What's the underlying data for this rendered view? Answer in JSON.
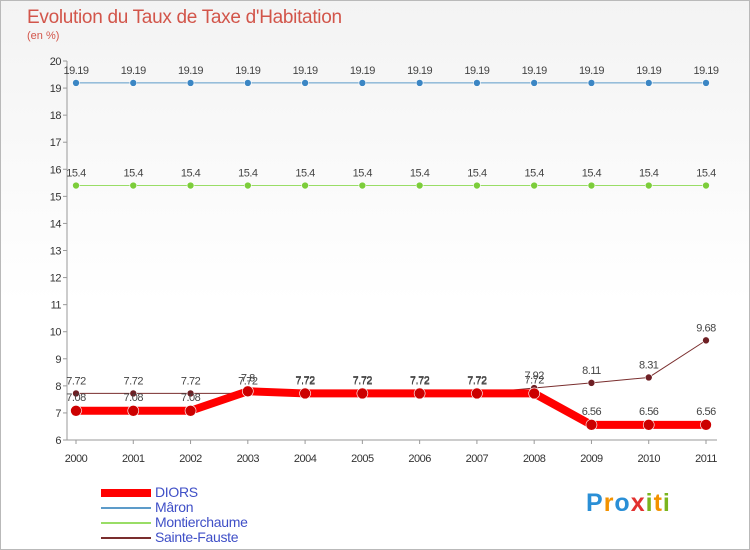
{
  "chart_data": {
    "type": "line",
    "title": "Evolution du Taux de Taxe d'Habitation",
    "ylabel": "(en %)",
    "xlabel": "",
    "ylim": [
      6,
      20
    ],
    "yticks": [
      "6",
      "7",
      "8",
      "9",
      "10",
      "11",
      "12",
      "13",
      "14",
      "15",
      "16",
      "17",
      "18",
      "19",
      "20"
    ],
    "categories": [
      "2000",
      "2001",
      "2002",
      "2003",
      "2004",
      "2005",
      "2006",
      "2007",
      "2008",
      "2009",
      "2010",
      "2011"
    ],
    "grid": false,
    "legend_position": "bottom-left",
    "series": [
      {
        "name": "DIORS",
        "color": "#ff0000",
        "values": [
          7.08,
          7.08,
          7.08,
          7.8,
          7.72,
          7.72,
          7.72,
          7.72,
          7.72,
          6.56,
          6.56,
          6.56
        ],
        "labels": [
          "7.08",
          "7.08",
          "7.08",
          "7.8",
          "7.72",
          "7.72",
          "7.72",
          "7.72",
          "7.72",
          "6.56",
          "6.56",
          "6.56"
        ]
      },
      {
        "name": "Mâron",
        "color": "#5d9bc9",
        "values": [
          19.19,
          19.19,
          19.19,
          19.19,
          19.19,
          19.19,
          19.19,
          19.19,
          19.19,
          19.19,
          19.19,
          19.19
        ],
        "labels": [
          "19.19",
          "19.19",
          "19.19",
          "19.19",
          "19.19",
          "19.19",
          "19.19",
          "19.19",
          "19.19",
          "19.19",
          "19.19",
          "19.19"
        ]
      },
      {
        "name": "Montierchaume",
        "color": "#99dd66",
        "values": [
          15.4,
          15.4,
          15.4,
          15.4,
          15.4,
          15.4,
          15.4,
          15.4,
          15.4,
          15.4,
          15.4,
          15.4
        ],
        "labels": [
          "15.4",
          "15.4",
          "15.4",
          "15.4",
          "15.4",
          "15.4",
          "15.4",
          "15.4",
          "15.4",
          "15.4",
          "15.4",
          "15.4"
        ]
      },
      {
        "name": "Sainte-Fauste",
        "color": "#7a2e2e",
        "values": [
          7.72,
          7.72,
          7.72,
          7.72,
          7.72,
          7.72,
          7.72,
          7.72,
          7.92,
          8.11,
          8.31,
          9.68
        ],
        "labels": [
          "7.72",
          "7.72",
          "7.72",
          "7.72",
          "7.72",
          "7.72",
          "7.72",
          "7.72",
          "7.92",
          "8.11",
          "8.31",
          "9.68"
        ]
      }
    ]
  },
  "brand": {
    "name": "Proxiti",
    "letters": [
      "P",
      "r",
      "o",
      "x",
      "i",
      "t",
      "i"
    ],
    "colors": [
      "#2a8fd6",
      "#f39200",
      "#2a8fd6",
      "#e2312f",
      "#7ab51d",
      "#f39200",
      "#7ab51d"
    ]
  }
}
